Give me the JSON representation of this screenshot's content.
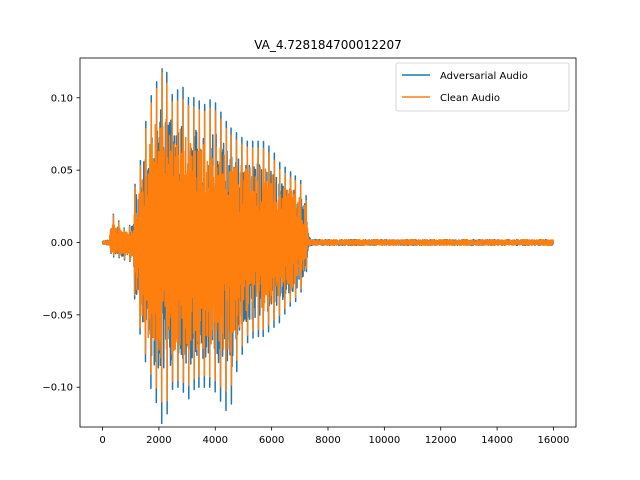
{
  "chart_data": {
    "type": "line",
    "title": "VA_4.728184700012207",
    "xlabel": "",
    "ylabel": "",
    "xlim": [
      -800,
      16800
    ],
    "ylim": [
      -0.1275,
      0.1275
    ],
    "x_ticks": [
      0,
      2000,
      4000,
      6000,
      8000,
      10000,
      12000,
      14000,
      16000
    ],
    "x_tick_labels": [
      "0",
      "2000",
      "4000",
      "6000",
      "8000",
      "10000",
      "12000",
      "14000",
      "16000"
    ],
    "y_ticks": [
      -0.1,
      -0.05,
      0.0,
      0.05,
      0.1
    ],
    "y_tick_labels": [
      "−0.10",
      "−0.05",
      "0.00",
      "0.05",
      "0.10"
    ],
    "grid": false,
    "legend_position": "top-right",
    "sample_count": 16000,
    "series": [
      {
        "name": "Adversarial Audio",
        "color": "#1f77b4",
        "envelope": {
          "x": [
            0,
            250,
            300,
            380,
            450,
            550,
            700,
            900,
            1100,
            1150,
            1300,
            1500,
            1700,
            1900,
            2100,
            2250,
            2500,
            2800,
            3000,
            3300,
            3600,
            3900,
            4200,
            4500,
            4800,
            5100,
            5400,
            5700,
            6000,
            6300,
            6600,
            6900,
            7200,
            7300,
            7400,
            8000,
            9000,
            10000,
            11000,
            12000,
            13000,
            14000,
            15000,
            16000
          ],
          "y": [
            0.001,
            0.002,
            0.019,
            0.02,
            0.012,
            0.016,
            0.01,
            0.01,
            0.016,
            0.04,
            0.05,
            0.08,
            0.1,
            0.11,
            0.12,
            0.12,
            0.1,
            0.11,
            0.1,
            0.1,
            0.095,
            0.1,
            0.09,
            0.08,
            0.075,
            0.07,
            0.07,
            0.07,
            0.065,
            0.055,
            0.05,
            0.045,
            0.04,
            0.008,
            0.002,
            0.002,
            0.002,
            0.002,
            0.002,
            0.002,
            0.002,
            0.002,
            0.002,
            0.002
          ],
          "y_neg": [
            0.001,
            0.002,
            0.01,
            0.01,
            0.01,
            0.01,
            0.012,
            0.012,
            0.015,
            0.045,
            0.06,
            0.08,
            0.1,
            0.11,
            0.125,
            0.122,
            0.1,
            0.1,
            0.11,
            0.1,
            0.1,
            0.1,
            0.11,
            0.12,
            0.085,
            0.07,
            0.065,
            0.065,
            0.06,
            0.055,
            0.045,
            0.04,
            0.028,
            0.006,
            0.002,
            0.002,
            0.002,
            0.002,
            0.002,
            0.002,
            0.002,
            0.002,
            0.002,
            0.002
          ]
        }
      },
      {
        "name": "Clean Audio",
        "color": "#ff7f0e",
        "envelope": {
          "x": [
            0,
            250,
            300,
            380,
            450,
            550,
            700,
            900,
            1100,
            1150,
            1300,
            1500,
            1700,
            1900,
            2100,
            2250,
            2500,
            2800,
            3000,
            3300,
            3600,
            3900,
            4200,
            4500,
            4800,
            5100,
            5400,
            5700,
            6000,
            6300,
            6600,
            6900,
            7200,
            7300,
            7400,
            8000,
            9000,
            10000,
            11000,
            12000,
            13000,
            14000,
            15000,
            16000
          ],
          "y": [
            0.001,
            0.002,
            0.018,
            0.019,
            0.011,
            0.015,
            0.009,
            0.009,
            0.015,
            0.038,
            0.047,
            0.075,
            0.095,
            0.105,
            0.118,
            0.112,
            0.095,
            0.1,
            0.095,
            0.093,
            0.09,
            0.094,
            0.085,
            0.075,
            0.07,
            0.066,
            0.065,
            0.065,
            0.06,
            0.05,
            0.046,
            0.042,
            0.037,
            0.003,
            0.002,
            0.002,
            0.002,
            0.002,
            0.002,
            0.002,
            0.002,
            0.002,
            0.002,
            0.002
          ],
          "y_neg": [
            0.001,
            0.002,
            0.009,
            0.009,
            0.009,
            0.009,
            0.011,
            0.011,
            0.014,
            0.042,
            0.056,
            0.075,
            0.09,
            0.1,
            0.11,
            0.112,
            0.095,
            0.095,
            0.1,
            0.093,
            0.092,
            0.093,
            0.1,
            0.105,
            0.078,
            0.065,
            0.06,
            0.06,
            0.055,
            0.05,
            0.042,
            0.037,
            0.026,
            0.003,
            0.002,
            0.002,
            0.002,
            0.002,
            0.002,
            0.002,
            0.002,
            0.002,
            0.002,
            0.002
          ]
        }
      }
    ]
  }
}
